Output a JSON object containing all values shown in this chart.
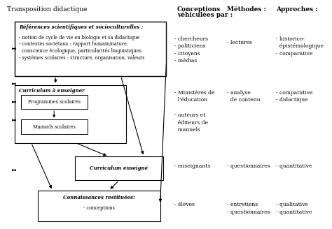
{
  "title": "Transposition didactique",
  "col2_header1": "Conceptions",
  "col2_header2": "véhiculées par :",
  "col3_header": "Méthodes :",
  "col4_header": "Approches :",
  "box1_title": "Références scientifiques et socioculturelles :",
  "box1_body": "- notion de cycle de vie en biologie et sa didactique\n- contextes sociétaux : rapport humain/nature,\n  conscience écologique, particularités linguistiques\n- systèmes scolaires : structure, organisation, valeurs",
  "box2_title": "Curriculum à enseigner",
  "box2a_label": "Programmes scolaires",
  "box2b_label": "Manuels scolaires",
  "box3_title": "Curriculum enseigné",
  "box4_title": "Connaissances restituées:",
  "box4_body": "- conceptions",
  "text_fontsize": 5.5,
  "title_fontsize": 6.5,
  "header_fontsize": 6.5
}
